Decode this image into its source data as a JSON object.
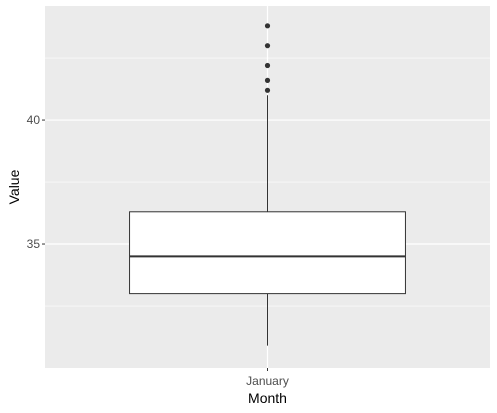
{
  "chart_data": {
    "type": "boxplot",
    "title": "",
    "xlabel": "Month",
    "ylabel": "Value",
    "categories": [
      "January"
    ],
    "boxes": [
      {
        "category": "January",
        "min": 30.9,
        "q1": 33.0,
        "median": 34.5,
        "q3": 36.3,
        "max": 41.0,
        "outliers": [
          41.2,
          41.6,
          42.2,
          43.0,
          43.8
        ]
      }
    ],
    "ylim": [
      30.0,
      44.6
    ],
    "y_ticks": [
      35,
      40
    ],
    "y_tick_labels": [
      "35",
      "40"
    ],
    "y_minor_gridlines": [
      32.5,
      37.5,
      42.5
    ],
    "grid": true,
    "panel_background": "#ebebeb",
    "grid_color": "#ffffff",
    "box_fill": "#ffffff",
    "box_outline": "#333333",
    "outlier_color": "#333333"
  }
}
